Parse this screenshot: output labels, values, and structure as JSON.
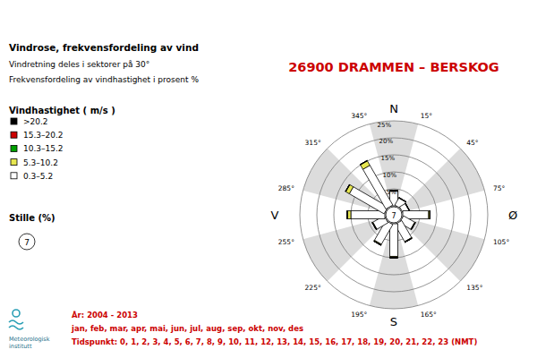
{
  "chart_data": {
    "type": "wind_rose",
    "title": "26900 DRAMMEN – BERSKOG",
    "heading": "Vindrose, frekvensfordeling av vind",
    "notes": [
      "Vindretning deles i sektorer på 30°",
      "Frekvensfordeling av vindhastighet i prosent %"
    ],
    "legend_title": "Vindhastighet ( m/s )",
    "legend": "left",
    "stacked": true,
    "calm_label": "Stille (%)",
    "calm": 7,
    "categories": [
      "N",
      null,
      null,
      "Ø",
      null,
      null,
      "S",
      null,
      null,
      "V",
      null,
      null
    ],
    "xlim": [
      0,
      360
    ],
    "xticks": [
      {
        "value": 15,
        "label": "15°"
      },
      {
        "value": 45,
        "label": "45°"
      },
      {
        "value": 75,
        "label": "75°"
      },
      {
        "value": 105,
        "label": "105°"
      },
      {
        "value": 135,
        "label": "135°"
      },
      {
        "value": 165,
        "label": "165°"
      },
      {
        "value": 195,
        "label": "195°"
      },
      {
        "value": 225,
        "label": "225°"
      },
      {
        "value": 255,
        "label": "255°"
      },
      {
        "value": 285,
        "label": "285°"
      },
      {
        "value": 315,
        "label": "315°"
      },
      {
        "value": 345,
        "label": "345°"
      }
    ],
    "ylim": [
      0,
      25
    ],
    "yticks": [
      {
        "value": 5,
        "label": "5%"
      },
      {
        "value": 10,
        "label": "10%"
      },
      {
        "value": 15,
        "label": "15%"
      },
      {
        "value": 20,
        "label": "20%"
      },
      {
        "value": 25,
        "label": "25%"
      }
    ],
    "series": [
      {
        "name": ">20.2",
        "color": "#000000",
        "values": [
          0,
          0,
          0,
          0,
          0,
          0,
          0,
          0,
          0,
          0,
          0,
          0
        ]
      },
      {
        "name": "15.3–20.2",
        "color": "#cc0000",
        "values": [
          0,
          0,
          0,
          0,
          0,
          0,
          0,
          0,
          0,
          0,
          0,
          0
        ]
      },
      {
        "name": "10.3–15.2",
        "color": "#00a000",
        "values": [
          0,
          0,
          0,
          0,
          0,
          0,
          0,
          0,
          0,
          0.1,
          0.1,
          0.1
        ]
      },
      {
        "name": "5.3–10.2",
        "color": "#e6e650",
        "values": [
          0.2,
          0.1,
          0.1,
          0.4,
          0.2,
          0.2,
          0.4,
          0.3,
          0.2,
          1.0,
          1.2,
          1.5
        ]
      },
      {
        "name": "0.3–5.2",
        "color": "#ffffff",
        "values": [
          4.3,
          2.4,
          1.9,
          7.6,
          3.8,
          5.8,
          9.6,
          6.7,
          3.8,
          10.0,
          11.8,
          13.5
        ]
      }
    ],
    "footer": [
      "År: 2004 - 2013",
      "jan, feb, mar, apr, mai, jun, jul, aug, sep, okt, nov, des",
      "Tidspunkt: 0, 1, 2, 3, 4, 5, 6, 7, 8, 9, 10, 11, 12, 13, 14, 15, 16, 17, 18, 19, 20, 21, 22, 23 (NMT)"
    ],
    "logo": [
      "Meteorologisk",
      "institutt"
    ]
  }
}
